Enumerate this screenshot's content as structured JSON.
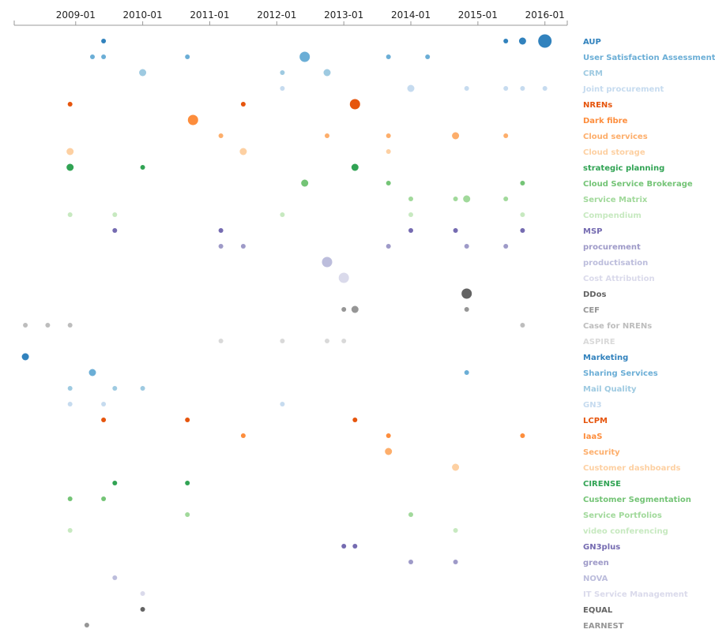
{
  "chart_data": {
    "type": "scatter",
    "x_axis": {
      "position": "top",
      "tick_labels": [
        "2009-01",
        "2010-01",
        "2011-01",
        "2012-01",
        "2013-01",
        "2014-01",
        "2015-01",
        "2016-01"
      ],
      "range": [
        "2008-02",
        "2016-05"
      ]
    },
    "grid": false,
    "legend": "none",
    "rows": [
      {
        "label": "AUP",
        "color": "#3182bd",
        "points": [
          {
            "x": "2009-06",
            "size": 1
          },
          {
            "x": "2015-06",
            "size": 1
          },
          {
            "x": "2015-09",
            "size": 2
          },
          {
            "x": "2016-01",
            "size": 4
          }
        ]
      },
      {
        "label": "User Satisfaction Assessment",
        "color": "#6baed6",
        "points": [
          {
            "x": "2009-04",
            "size": 1
          },
          {
            "x": "2009-06",
            "size": 1
          },
          {
            "x": "2010-09",
            "size": 1
          },
          {
            "x": "2012-06",
            "size": 3
          },
          {
            "x": "2013-09",
            "size": 1
          },
          {
            "x": "2014-04",
            "size": 1
          }
        ]
      },
      {
        "label": "CRM",
        "color": "#9ecae1",
        "points": [
          {
            "x": "2010-01",
            "size": 2
          },
          {
            "x": "2012-02",
            "size": 1
          },
          {
            "x": "2012-10",
            "size": 2
          }
        ]
      },
      {
        "label": "Joint procurement",
        "color": "#c6dbef",
        "points": [
          {
            "x": "2012-02",
            "size": 1
          },
          {
            "x": "2014-01",
            "size": 2
          },
          {
            "x": "2014-11",
            "size": 1
          },
          {
            "x": "2015-06",
            "size": 1
          },
          {
            "x": "2015-09",
            "size": 1
          },
          {
            "x": "2016-01",
            "size": 1
          }
        ]
      },
      {
        "label": "NRENs",
        "color": "#e6550d",
        "points": [
          {
            "x": "2008-12",
            "size": 1
          },
          {
            "x": "2011-07",
            "size": 1
          },
          {
            "x": "2013-03",
            "size": 3
          }
        ]
      },
      {
        "label": "Dark fibre",
        "color": "#fd8d3c",
        "points": [
          {
            "x": "2010-10",
            "size": 3
          }
        ]
      },
      {
        "label": "Cloud services",
        "color": "#fdae6b",
        "points": [
          {
            "x": "2011-03",
            "size": 1
          },
          {
            "x": "2012-10",
            "size": 1
          },
          {
            "x": "2013-09",
            "size": 1
          },
          {
            "x": "2014-09",
            "size": 2
          },
          {
            "x": "2015-06",
            "size": 1
          }
        ]
      },
      {
        "label": "Cloud storage",
        "color": "#fdd0a2",
        "points": [
          {
            "x": "2008-12",
            "size": 2
          },
          {
            "x": "2011-07",
            "size": 2
          },
          {
            "x": "2013-09",
            "size": 1
          }
        ]
      },
      {
        "label": "strategic planning",
        "color": "#31a354",
        "points": [
          {
            "x": "2008-12",
            "size": 2
          },
          {
            "x": "2010-01",
            "size": 1
          },
          {
            "x": "2013-03",
            "size": 2
          }
        ]
      },
      {
        "label": "Cloud Service Brokerage",
        "color": "#74c476",
        "points": [
          {
            "x": "2012-06",
            "size": 2
          },
          {
            "x": "2013-09",
            "size": 1
          },
          {
            "x": "2015-09",
            "size": 1
          }
        ]
      },
      {
        "label": "Service Matrix",
        "color": "#a1d99b",
        "points": [
          {
            "x": "2014-01",
            "size": 1
          },
          {
            "x": "2014-09",
            "size": 1
          },
          {
            "x": "2014-11",
            "size": 2
          },
          {
            "x": "2015-06",
            "size": 1
          }
        ]
      },
      {
        "label": "Compendium",
        "color": "#c7e9c0",
        "points": [
          {
            "x": "2008-12",
            "size": 1
          },
          {
            "x": "2009-08",
            "size": 1
          },
          {
            "x": "2012-02",
            "size": 1
          },
          {
            "x": "2014-01",
            "size": 1
          },
          {
            "x": "2015-09",
            "size": 1
          }
        ]
      },
      {
        "label": "MSP",
        "color": "#756bb1",
        "points": [
          {
            "x": "2009-08",
            "size": 1
          },
          {
            "x": "2011-03",
            "size": 1
          },
          {
            "x": "2014-01",
            "size": 1
          },
          {
            "x": "2014-09",
            "size": 1
          },
          {
            "x": "2015-09",
            "size": 1
          }
        ]
      },
      {
        "label": "procurement",
        "color": "#9e9ac8",
        "points": [
          {
            "x": "2011-03",
            "size": 1
          },
          {
            "x": "2011-07",
            "size": 1
          },
          {
            "x": "2013-09",
            "size": 1
          },
          {
            "x": "2014-11",
            "size": 1
          },
          {
            "x": "2015-06",
            "size": 1
          }
        ]
      },
      {
        "label": "productisation",
        "color": "#bcbddc",
        "points": [
          {
            "x": "2012-10",
            "size": 3
          }
        ]
      },
      {
        "label": "Cost Attribution",
        "color": "#dadaeb",
        "points": [
          {
            "x": "2013-01",
            "size": 3
          }
        ]
      },
      {
        "label": "DDos",
        "color": "#636363",
        "points": [
          {
            "x": "2014-11",
            "size": 3
          }
        ]
      },
      {
        "label": "CEF",
        "color": "#969696",
        "points": [
          {
            "x": "2013-01",
            "size": 1
          },
          {
            "x": "2013-03",
            "size": 2
          },
          {
            "x": "2014-11",
            "size": 1
          }
        ]
      },
      {
        "label": "Case for NRENs",
        "color": "#bdbdbd",
        "points": [
          {
            "x": "2008-04",
            "size": 1
          },
          {
            "x": "2008-08",
            "size": 1
          },
          {
            "x": "2008-12",
            "size": 1
          },
          {
            "x": "2015-09",
            "size": 1
          }
        ]
      },
      {
        "label": "ASPIRE",
        "color": "#d9d9d9",
        "points": [
          {
            "x": "2011-03",
            "size": 1
          },
          {
            "x": "2012-02",
            "size": 1
          },
          {
            "x": "2012-10",
            "size": 1
          },
          {
            "x": "2013-01",
            "size": 1
          }
        ]
      },
      {
        "label": "Marketing",
        "color": "#3182bd",
        "points": [
          {
            "x": "2008-04",
            "size": 2
          }
        ]
      },
      {
        "label": "Sharing Services",
        "color": "#6baed6",
        "points": [
          {
            "x": "2009-04",
            "size": 2
          },
          {
            "x": "2014-11",
            "size": 1
          }
        ]
      },
      {
        "label": "Mail Quality",
        "color": "#9ecae1",
        "points": [
          {
            "x": "2008-12",
            "size": 1
          },
          {
            "x": "2009-08",
            "size": 1
          },
          {
            "x": "2010-01",
            "size": 1
          }
        ]
      },
      {
        "label": "GN3",
        "color": "#c6dbef",
        "points": [
          {
            "x": "2008-12",
            "size": 1
          },
          {
            "x": "2009-06",
            "size": 1
          },
          {
            "x": "2012-02",
            "size": 1
          }
        ]
      },
      {
        "label": "LCPM",
        "color": "#e6550d",
        "points": [
          {
            "x": "2009-06",
            "size": 1
          },
          {
            "x": "2010-09",
            "size": 1
          },
          {
            "x": "2013-03",
            "size": 1
          }
        ]
      },
      {
        "label": "IaaS",
        "color": "#fd8d3c",
        "points": [
          {
            "x": "2011-07",
            "size": 1
          },
          {
            "x": "2013-09",
            "size": 1
          },
          {
            "x": "2015-09",
            "size": 1
          }
        ]
      },
      {
        "label": "Security",
        "color": "#fdae6b",
        "points": [
          {
            "x": "2013-09",
            "size": 2
          }
        ]
      },
      {
        "label": "Customer dashboards",
        "color": "#fdd0a2",
        "points": [
          {
            "x": "2014-09",
            "size": 2
          }
        ]
      },
      {
        "label": "CIRENSE",
        "color": "#31a354",
        "points": [
          {
            "x": "2009-08",
            "size": 1
          },
          {
            "x": "2010-09",
            "size": 1
          }
        ]
      },
      {
        "label": "Customer Segmentation",
        "color": "#74c476",
        "points": [
          {
            "x": "2008-12",
            "size": 1
          },
          {
            "x": "2009-06",
            "size": 1
          }
        ]
      },
      {
        "label": "Service Portfolios",
        "color": "#a1d99b",
        "points": [
          {
            "x": "2010-09",
            "size": 1
          },
          {
            "x": "2014-01",
            "size": 1
          }
        ]
      },
      {
        "label": "video conferencing",
        "color": "#c7e9c0",
        "points": [
          {
            "x": "2008-12",
            "size": 1
          },
          {
            "x": "2014-09",
            "size": 1
          }
        ]
      },
      {
        "label": "GN3plus",
        "color": "#756bb1",
        "points": [
          {
            "x": "2013-01",
            "size": 1
          },
          {
            "x": "2013-03",
            "size": 1
          }
        ]
      },
      {
        "label": "green",
        "color": "#9e9ac8",
        "points": [
          {
            "x": "2014-01",
            "size": 1
          },
          {
            "x": "2014-09",
            "size": 1
          }
        ]
      },
      {
        "label": "NOVA",
        "color": "#bcbddc",
        "points": [
          {
            "x": "2009-08",
            "size": 1
          }
        ]
      },
      {
        "label": "IT Service Management",
        "color": "#dadaeb",
        "points": [
          {
            "x": "2010-01",
            "size": 1
          }
        ]
      },
      {
        "label": "EQUAL",
        "color": "#636363",
        "points": [
          {
            "x": "2010-01",
            "size": 1
          }
        ]
      },
      {
        "label": "EARNEST",
        "color": "#969696",
        "points": [
          {
            "x": "2009-03",
            "size": 1
          }
        ]
      }
    ]
  }
}
